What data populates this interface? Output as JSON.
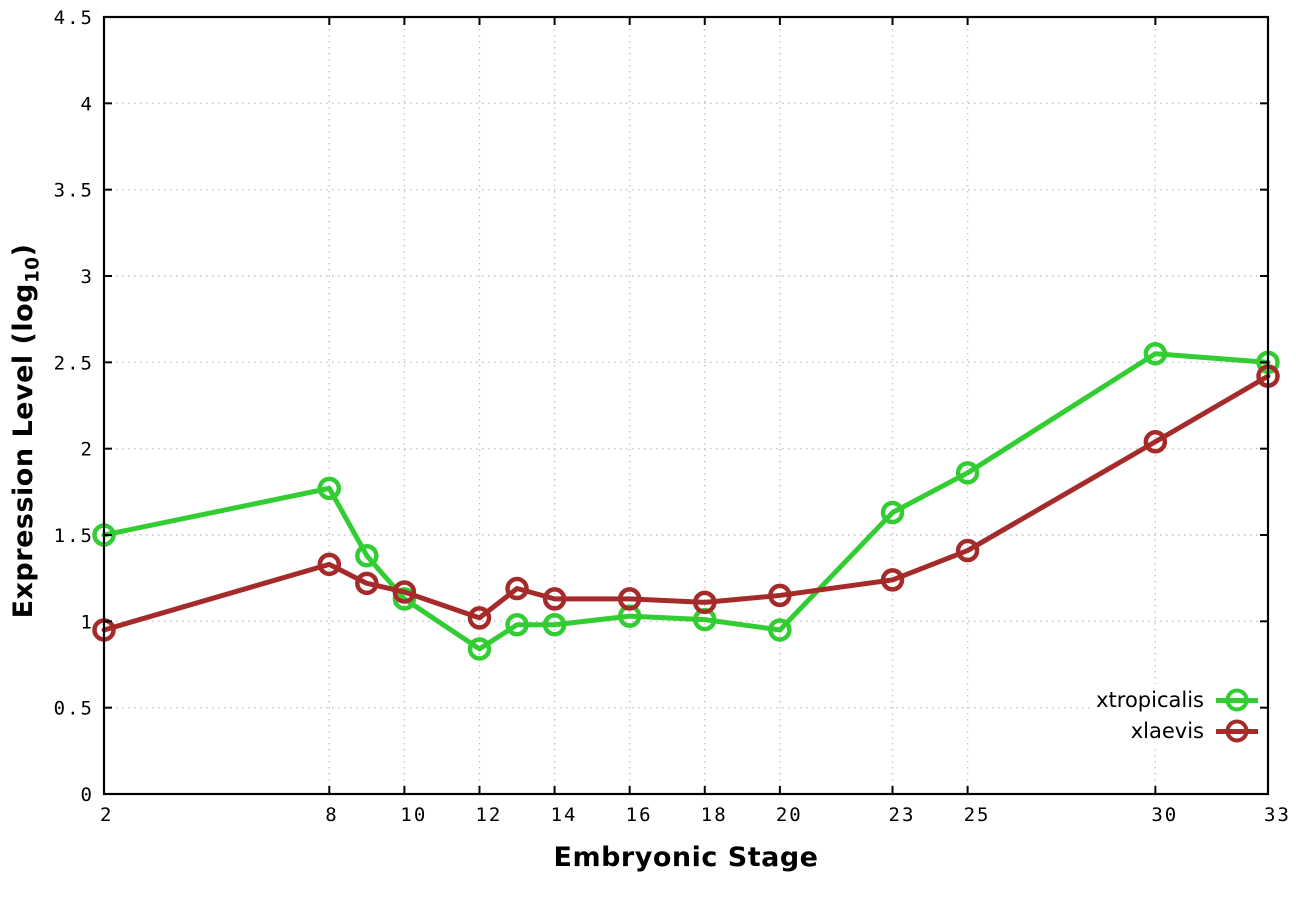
{
  "figure": {
    "xlabel": "Embryonic Stage",
    "ylabel_prefix": "Expression Level (log",
    "ylabel_sub": "10",
    "ylabel_suffix": ")"
  },
  "legend": {
    "items": [
      {
        "label": "xtropicalis"
      },
      {
        "label": "xlaevis"
      }
    ]
  },
  "chart_data": {
    "type": "line",
    "title": "",
    "xlabel": "Embryonic Stage",
    "ylabel": "Expression Level (log10)",
    "xlim": [
      2,
      33
    ],
    "ylim": [
      0,
      4.5
    ],
    "grid": true,
    "legend_position": "inside-bottom-right",
    "x_ticks": [
      2,
      8,
      10,
      12,
      14,
      16,
      18,
      20,
      23,
      25,
      30,
      33
    ],
    "y_ticks": [
      0,
      0.5,
      1,
      1.5,
      2,
      2.5,
      3,
      3.5,
      4,
      4.5
    ],
    "x": [
      2,
      8,
      9,
      10,
      12,
      13,
      14,
      16,
      18,
      20,
      23,
      25,
      30,
      33
    ],
    "series": [
      {
        "name": "xtropicalis",
        "color": "#32cd32",
        "values": [
          1.5,
          1.77,
          1.38,
          1.13,
          0.84,
          0.98,
          0.98,
          1.03,
          1.01,
          0.95,
          1.63,
          1.86,
          2.55,
          2.5
        ]
      },
      {
        "name": "xlaevis",
        "color": "#a52a2a",
        "values": [
          0.95,
          1.33,
          1.22,
          1.17,
          1.02,
          1.19,
          1.13,
          1.13,
          1.11,
          1.15,
          1.24,
          1.41,
          2.04,
          2.42
        ]
      }
    ],
    "marker": "open-circle"
  },
  "style": {
    "grid_color": "#c4c4c4",
    "axis_color": "#000000",
    "line_width": 5,
    "marker_radius": 9.5,
    "marker_stroke": 4.5
  }
}
